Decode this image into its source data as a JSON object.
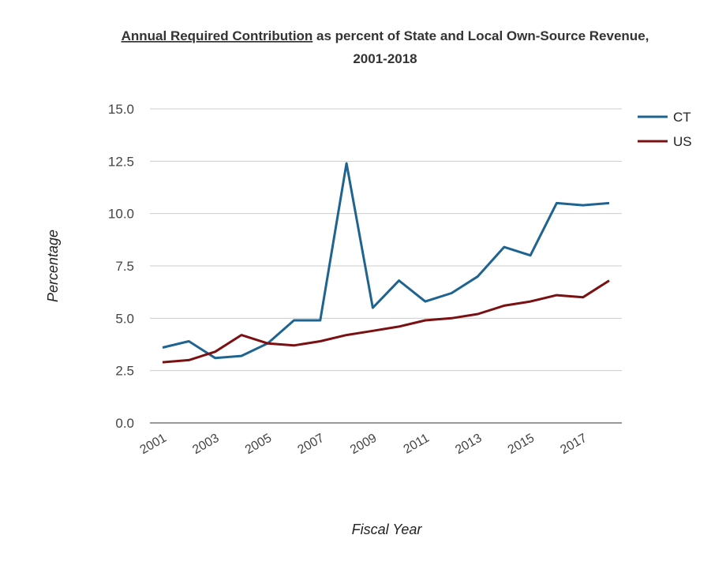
{
  "chart_data": {
    "type": "line",
    "title_link_text": "Annual Required Contribution",
    "title_rest": " as percent of State and Local Own-Source Revenue,",
    "title_line2": "2001-2018",
    "xlabel": "Fiscal Year",
    "ylabel": "Percentage",
    "x": [
      2001,
      2002,
      2003,
      2004,
      2005,
      2006,
      2007,
      2008,
      2009,
      2010,
      2011,
      2012,
      2013,
      2014,
      2015,
      2016,
      2017,
      2018
    ],
    "x_tick_labels": [
      "2001",
      "2003",
      "2005",
      "2007",
      "2009",
      "2011",
      "2013",
      "2015",
      "2017"
    ],
    "y_tick_labels": [
      "0.0",
      "2.5",
      "5.0",
      "7.5",
      "10.0",
      "12.5",
      "15.0"
    ],
    "ylim": [
      0,
      15
    ],
    "grid": true,
    "legend_position": "right",
    "series": [
      {
        "name": "CT",
        "color": "#1f6391",
        "values": [
          3.6,
          3.9,
          3.1,
          3.2,
          3.8,
          4.9,
          4.9,
          12.4,
          5.5,
          6.8,
          5.8,
          6.2,
          7.0,
          8.4,
          8.0,
          10.5,
          10.4,
          10.5
        ]
      },
      {
        "name": "US",
        "color": "#7b1012",
        "values": [
          2.9,
          3.0,
          3.4,
          4.2,
          3.8,
          3.7,
          3.9,
          4.2,
          4.4,
          4.6,
          4.9,
          5.0,
          5.2,
          5.6,
          5.8,
          6.1,
          6.0,
          6.8
        ]
      }
    ]
  }
}
